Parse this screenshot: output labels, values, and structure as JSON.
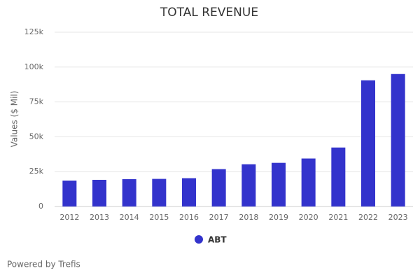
{
  "chart_data": {
    "type": "bar",
    "title": "TOTAL REVENUE",
    "y_label": "Values ($ Mil)",
    "categories": [
      "2012",
      "2013",
      "2014",
      "2015",
      "2016",
      "2017",
      "2018",
      "2019",
      "2020",
      "2021",
      "2022",
      "2023"
    ],
    "series": [
      {
        "name": "ABT",
        "color": "#3333cc",
        "values": [
          18600,
          19100,
          19600,
          19800,
          20300,
          26800,
          30300,
          31300,
          34400,
          42300,
          90500,
          95000
        ]
      }
    ],
    "ylim": [
      0,
      125000
    ],
    "yticks": [
      0,
      {
        "value": 25000,
        "label": "25k"
      },
      {
        "value": 50000,
        "label": "50k"
      },
      {
        "value": 75000,
        "label": "75k"
      },
      {
        "value": 100000,
        "label": "100k"
      },
      {
        "value": 125000,
        "label": "125k"
      }
    ],
    "grid": true
  },
  "footer": "Powered by Trefis"
}
